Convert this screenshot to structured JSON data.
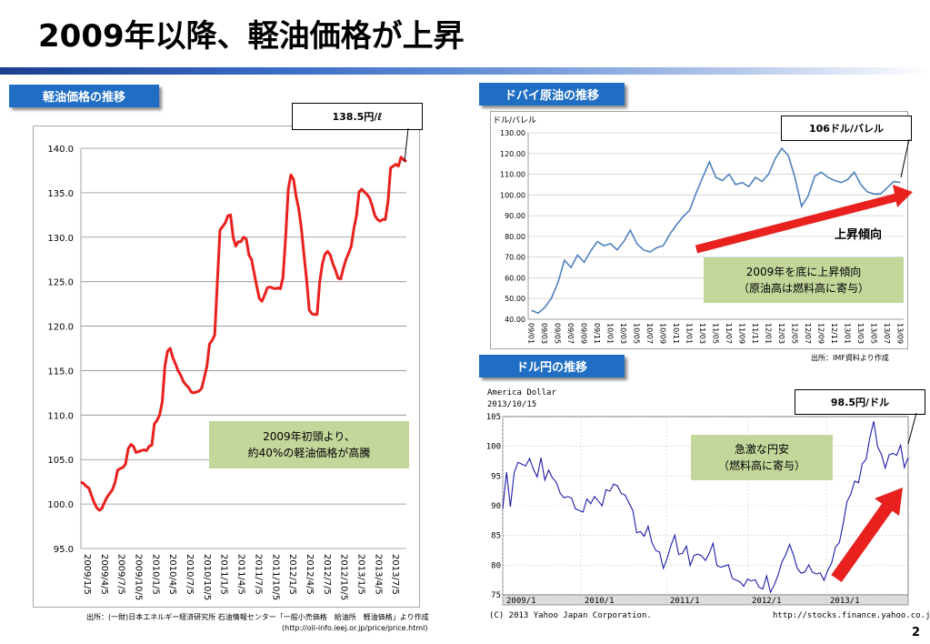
{
  "slide": {
    "title": "2009年以降、軽油価格が上昇",
    "page_number": "2",
    "colors": {
      "title_bar": "#1a3f8f",
      "section_label": "#1f6ec4",
      "note_box": "#c4d79b",
      "line_red": "#e8201e",
      "line_blue": "#4f81bd",
      "line_navy": "#1c1ca8",
      "arrow": "#e8201e"
    }
  },
  "diesel": {
    "label": "軽油価格の推移",
    "callout": "138.5円/ℓ",
    "note_line1": "2009年初頭より、",
    "note_line2": "約40%の軽油価格が高騰",
    "source_line1": "出所：(一財)日本エネルギー経済研究所 石油情報センター「一般小売価格　給油所　軽油価格」より作成",
    "source_line2": "(http://oil-info.ieej.or.jp/price/price.html)"
  },
  "dubai": {
    "label": "ドバイ原油の推移",
    "callout": "106ドル/バレル",
    "trend_label": "上昇傾向",
    "note_line1": "2009年を底に上昇傾向",
    "note_line2": "（原油高は燃料高に寄与）",
    "source": "出所：IMF資料より作成"
  },
  "usdjpy": {
    "label": "ドル円の推移",
    "callout": "98.5円/ドル",
    "note_line1": "急激な円安",
    "note_line2": "（燃料高に寄与）",
    "footer_left": "(C) 2013 Yahoo Japan Corporation.",
    "footer_right": "http://stocks.finance.yahoo.co.jp"
  },
  "chart_data": [
    {
      "id": "diesel",
      "type": "line",
      "ylim": [
        95,
        140
      ],
      "yticks": [
        "95.0",
        "100.0",
        "105.0",
        "110.0",
        "115.0",
        "120.0",
        "125.0",
        "130.0",
        "135.0",
        "140.0"
      ],
      "xticks": [
        "2009/1/5",
        "2009/4/5",
        "2009/7/5",
        "2009/10/5",
        "2010/1/5",
        "2010/4/5",
        "2010/7/5",
        "2010/10/5",
        "2011/1/5",
        "2011/4/5",
        "2011/7/5",
        "2011/10/5",
        "2012/1/5",
        "2012/4/5",
        "2012/7/5",
        "2012/10/5",
        "2013/1/5",
        "2013/4/5",
        "2013/7/5"
      ],
      "grid": true,
      "series": [
        {
          "values": [
            102.5,
            102.3,
            102.0,
            101.8,
            101.0,
            100.2,
            99.6,
            99.3,
            99.5,
            100.2,
            100.8,
            101.2,
            101.6,
            102.4,
            103.8,
            104.0,
            104.1,
            104.5,
            106.2,
            106.7,
            106.5,
            105.8,
            105.9,
            106.0,
            106.1,
            106.0,
            106.5,
            106.6,
            109.0,
            109.4,
            110.0,
            111.5,
            115.5,
            117.2,
            117.5,
            116.5,
            115.8,
            115.0,
            114.5,
            113.8,
            113.4,
            113.1,
            112.6,
            112.5,
            112.6,
            112.7,
            113.0,
            114.2,
            115.5,
            118.0,
            118.4,
            119.0,
            125.0,
            130.8,
            131.2,
            131.6,
            132.4,
            132.5,
            130.0,
            129.0,
            129.5,
            129.5,
            130.0,
            129.8,
            128.0,
            127.5,
            126.0,
            124.5,
            123.1,
            122.8,
            123.5,
            124.3,
            124.4,
            124.3,
            124.2,
            124.3,
            124.2,
            125.5,
            130.0,
            135.4,
            137.0,
            136.5,
            134.6,
            133.2,
            131.0,
            128.0,
            125.2,
            121.8,
            121.4,
            121.3,
            121.3,
            125.0,
            127.0,
            128.1,
            128.4,
            128.0,
            127.0,
            126.3,
            125.4,
            125.3,
            126.5,
            127.5,
            128.2,
            129.0,
            131.0,
            132.4,
            135.1,
            135.4,
            135.1,
            134.8,
            134.4,
            133.5,
            132.4,
            132.0,
            131.8,
            132.0,
            132.0,
            134.0,
            137.8,
            138.0,
            138.2,
            138.0,
            139.0,
            138.7,
            138.5
          ]
        }
      ]
    },
    {
      "id": "dubai",
      "type": "line",
      "ylabel": "ドル/バレル",
      "ylim": [
        40,
        130
      ],
      "yticks": [
        "40.00",
        "50.00",
        "60.00",
        "70.00",
        "80.00",
        "90.00",
        "100.00",
        "110.00",
        "120.00",
        "130.00"
      ],
      "x": [
        "09/01",
        "09/02",
        "09/03",
        "09/04",
        "09/05",
        "09/06",
        "09/07",
        "09/08",
        "09/09",
        "09/10",
        "09/11",
        "09/12",
        "10/01",
        "10/02",
        "10/03",
        "10/04",
        "10/05",
        "10/06",
        "10/07",
        "10/08",
        "10/09",
        "10/10",
        "10/11",
        "10/12",
        "11/01",
        "11/02",
        "11/03",
        "11/04",
        "11/05",
        "11/06",
        "11/07",
        "11/08",
        "11/09",
        "11/10",
        "11/11",
        "11/12",
        "12/01",
        "12/02",
        "12/03",
        "12/04",
        "12/05",
        "12/06",
        "12/07",
        "12/08",
        "12/09",
        "12/10",
        "12/11",
        "12/12",
        "13/01",
        "13/02",
        "13/03",
        "13/04",
        "13/05",
        "13/06",
        "13/07",
        "13/08",
        "13/09"
      ],
      "xticks": [
        "09/01",
        "09/03",
        "09/05",
        "09/07",
        "09/09",
        "09/11",
        "10/01",
        "10/03",
        "10/05",
        "10/07",
        "10/09",
        "10/11",
        "11/01",
        "11/03",
        "11/05",
        "11/07",
        "11/09",
        "11/11",
        "12/01",
        "12/03",
        "12/05",
        "12/07",
        "12/09",
        "12/11",
        "13/01",
        "13/03",
        "13/05",
        "13/07",
        "13/09"
      ],
      "series": [
        {
          "values": [
            44.3,
            43.0,
            45.6,
            50.0,
            57.5,
            68.5,
            65.0,
            71.0,
            67.5,
            73.0,
            77.5,
            75.5,
            76.5,
            73.5,
            77.5,
            83.0,
            76.5,
            73.5,
            72.5,
            74.5,
            75.5,
            81.0,
            85.5,
            89.5,
            92.5,
            101.0,
            108.5,
            116.0,
            108.5,
            107.0,
            110.0,
            105.0,
            106.0,
            104.0,
            108.5,
            106.5,
            110.0,
            117.5,
            122.5,
            119.0,
            108.5,
            94.5,
            99.5,
            109.0,
            111.0,
            108.5,
            107.0,
            106.0,
            107.5,
            111.0,
            105.0,
            101.5,
            100.5,
            100.5,
            103.5,
            106.5,
            106.0
          ]
        }
      ]
    },
    {
      "id": "usdjpy",
      "type": "line",
      "title": "America Dollar",
      "subtitle": "2013/10/15",
      "ylim": [
        75,
        105
      ],
      "yticks": [
        "75",
        "80",
        "85",
        "90",
        "95",
        "100",
        "105"
      ],
      "xticks": [
        "2009/1",
        "2010/1",
        "2011/1",
        "2012/1",
        "2013/1"
      ],
      "series": [
        {
          "values": [
            90.5,
            96.0,
            89.5,
            94.5,
            98.0,
            97.0,
            96.0,
            99.0,
            96.5,
            94.5,
            97.0,
            95.0,
            96.0,
            94.0,
            95.0,
            92.5,
            91.0,
            90.5,
            92.0,
            89.5,
            88.5,
            90.0,
            91.5,
            90.0,
            90.5,
            91.5,
            90.0,
            92.0,
            93.5,
            94.0,
            93.0,
            91.0,
            92.5,
            90.5,
            88.5,
            86.5,
            86.0,
            84.5,
            85.5,
            84.5,
            82.5,
            81.5,
            80.5,
            81.5,
            83.0,
            84.0,
            82.5,
            82.0,
            82.5,
            81.0,
            82.0,
            81.5,
            80.5,
            81.5,
            82.0,
            83.0,
            81.0,
            80.0,
            79.5,
            79.0,
            78.5,
            77.5,
            76.5,
            77.5,
            78.0,
            77.0,
            76.5,
            77.0,
            76.0,
            77.5,
            76.5,
            77.0,
            78.0,
            79.5,
            82.5,
            83.5,
            81.0,
            80.5,
            79.0,
            78.5,
            79.0,
            79.5,
            78.5,
            78.0,
            78.5,
            79.5,
            80.0,
            82.0,
            84.5,
            87.0,
            90.0,
            93.0,
            94.5,
            93.5,
            96.0,
            98.5,
            101.5,
            103.5,
            101.0,
            99.0,
            96.0,
            97.5,
            99.5,
            98.5,
            99.5,
            97.5,
            98.5
          ]
        }
      ]
    }
  ]
}
